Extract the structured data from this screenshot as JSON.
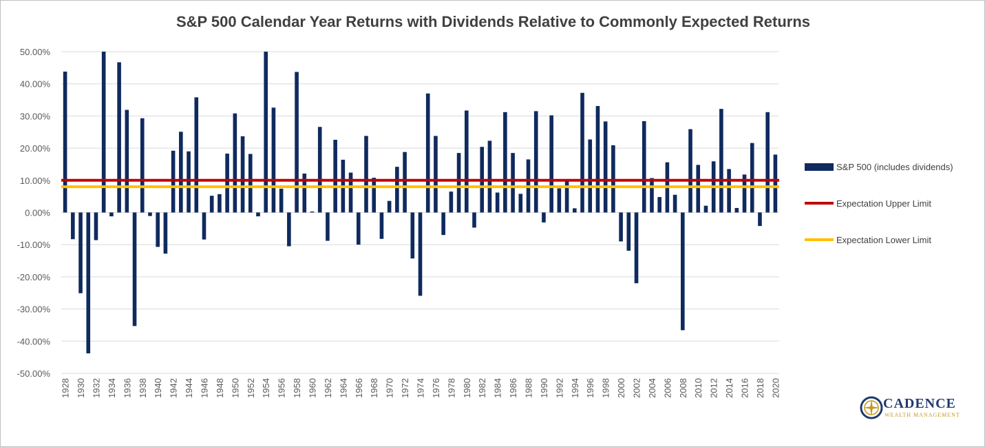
{
  "chart_data": {
    "type": "bar",
    "title": "S&P 500 Calendar Year Returns with Dividends Relative to Commonly Expected Returns",
    "xlabel": "",
    "ylabel": "",
    "ylim": [
      -50,
      50
    ],
    "yticks": [
      "50.00%",
      "40.00%",
      "30.00%",
      "20.00%",
      "10.00%",
      "0.00%",
      "-10.00%",
      "-20.00%",
      "-30.00%",
      "-40.00%",
      "-50.00%"
    ],
    "ytick_values": [
      50,
      40,
      30,
      20,
      10,
      0,
      -10,
      -20,
      -30,
      -40,
      -50
    ],
    "grid": true,
    "legend_position": "right",
    "categories": [
      1928,
      1929,
      1930,
      1931,
      1932,
      1933,
      1934,
      1935,
      1936,
      1937,
      1938,
      1939,
      1940,
      1941,
      1942,
      1943,
      1944,
      1945,
      1946,
      1947,
      1948,
      1949,
      1950,
      1951,
      1952,
      1953,
      1954,
      1955,
      1956,
      1957,
      1958,
      1959,
      1960,
      1961,
      1962,
      1963,
      1964,
      1965,
      1966,
      1967,
      1968,
      1969,
      1970,
      1971,
      1972,
      1973,
      1974,
      1975,
      1976,
      1977,
      1978,
      1979,
      1980,
      1981,
      1982,
      1983,
      1984,
      1985,
      1986,
      1987,
      1988,
      1989,
      1990,
      1991,
      1992,
      1993,
      1994,
      1995,
      1996,
      1997,
      1998,
      1999,
      2000,
      2001,
      2002,
      2003,
      2004,
      2005,
      2006,
      2007,
      2008,
      2009,
      2010,
      2011,
      2012,
      2013,
      2014,
      2015,
      2016,
      2017,
      2018,
      2019,
      2020
    ],
    "series": [
      {
        "name": "S&P 500 (includes dividends)",
        "color": "#0f2a5e",
        "values": [
          43.8,
          -8.3,
          -25.1,
          -43.8,
          -8.6,
          50.0,
          -1.2,
          46.7,
          31.9,
          -35.3,
          29.3,
          -1.1,
          -10.7,
          -12.8,
          19.2,
          25.1,
          19.0,
          35.8,
          -8.4,
          5.2,
          5.7,
          18.3,
          30.8,
          23.7,
          18.2,
          -1.2,
          52.6,
          32.6,
          7.4,
          -10.5,
          43.7,
          12.1,
          0.3,
          26.6,
          -8.8,
          22.6,
          16.4,
          12.4,
          -10.0,
          23.8,
          10.8,
          -8.2,
          3.6,
          14.2,
          18.8,
          -14.3,
          -25.9,
          37.0,
          23.8,
          -7.0,
          6.5,
          18.5,
          31.7,
          -4.7,
          20.4,
          22.3,
          6.2,
          31.2,
          18.5,
          5.8,
          16.5,
          31.5,
          -3.1,
          30.2,
          7.5,
          9.7,
          1.3,
          37.2,
          22.7,
          33.1,
          28.3,
          20.9,
          -9.0,
          -11.9,
          -22.0,
          28.4,
          10.7,
          4.8,
          15.6,
          5.5,
          -36.6,
          25.9,
          14.8,
          2.1,
          15.9,
          32.2,
          13.5,
          1.4,
          11.8,
          21.6,
          -4.2,
          31.2,
          18.0
        ]
      }
    ],
    "reference_lines": [
      {
        "name": "Expectation Upper Limit",
        "value": 10,
        "color": "#c00000"
      },
      {
        "name": "Expectation Lower Limit",
        "value": 8,
        "color": "#ffc000"
      }
    ],
    "xtick_labels": [
      "1928",
      "1930",
      "1932",
      "1934",
      "1936",
      "1938",
      "1940",
      "1942",
      "1944",
      "1946",
      "1948",
      "1950",
      "1952",
      "1954",
      "1956",
      "1958",
      "1960",
      "1962",
      "1964",
      "1966",
      "1968",
      "1970",
      "1972",
      "1974",
      "1976",
      "1978",
      "1980",
      "1982",
      "1984",
      "1986",
      "1988",
      "1990",
      "1992",
      "1994",
      "1996",
      "1998",
      "2000",
      "2002",
      "2004",
      "2006",
      "2008",
      "2010",
      "2012",
      "2014",
      "2016",
      "2018",
      "2020"
    ]
  },
  "logo": {
    "name": "CADENCE",
    "subtitle": "WEALTH MANAGEMENT"
  },
  "colors": {
    "bar": "#0f2a5e",
    "upper": "#c00000",
    "lower": "#ffc000",
    "grid": "#d9d9d9",
    "text": "#595959"
  }
}
